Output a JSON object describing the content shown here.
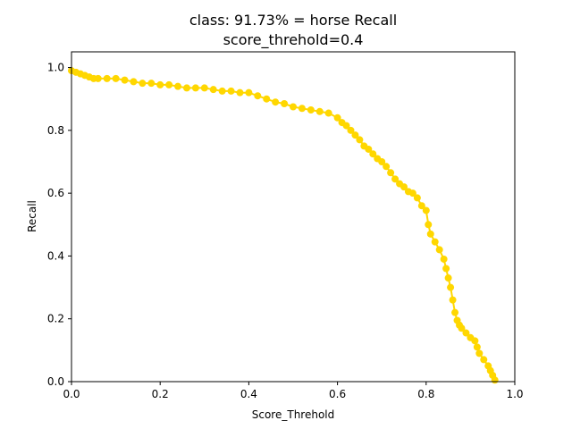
{
  "chart_data": {
    "type": "line",
    "title_line1": "class: 91.73% = horse Recall",
    "title_line2": "score_threhold=0.4",
    "xlabel": "Score_Threhold",
    "ylabel": "Recall",
    "xlim": [
      0.0,
      1.0
    ],
    "ylim": [
      0.0,
      1.05
    ],
    "x_ticks": [
      "0.0",
      "0.2",
      "0.4",
      "0.6",
      "0.8",
      "1.0"
    ],
    "y_ticks": [
      "0.0",
      "0.2",
      "0.4",
      "0.6",
      "0.8",
      "1.0"
    ],
    "grid": false,
    "marker": "circle",
    "series": [
      {
        "color": "#FFD700",
        "x": [
          0.0,
          0.01,
          0.02,
          0.03,
          0.04,
          0.05,
          0.06,
          0.08,
          0.1,
          0.12,
          0.14,
          0.16,
          0.18,
          0.2,
          0.22,
          0.24,
          0.26,
          0.28,
          0.3,
          0.32,
          0.34,
          0.36,
          0.38,
          0.4,
          0.42,
          0.44,
          0.46,
          0.48,
          0.5,
          0.52,
          0.54,
          0.56,
          0.58,
          0.6,
          0.61,
          0.62,
          0.63,
          0.64,
          0.65,
          0.66,
          0.67,
          0.68,
          0.69,
          0.7,
          0.71,
          0.72,
          0.73,
          0.74,
          0.75,
          0.76,
          0.77,
          0.78,
          0.79,
          0.8,
          0.805,
          0.81,
          0.82,
          0.83,
          0.84,
          0.845,
          0.85,
          0.855,
          0.86,
          0.865,
          0.87,
          0.875,
          0.88,
          0.89,
          0.9,
          0.91,
          0.915,
          0.92,
          0.93,
          0.94,
          0.945,
          0.95,
          0.955
        ],
        "y": [
          0.99,
          0.985,
          0.98,
          0.975,
          0.97,
          0.965,
          0.965,
          0.965,
          0.965,
          0.96,
          0.955,
          0.95,
          0.95,
          0.945,
          0.945,
          0.94,
          0.935,
          0.935,
          0.935,
          0.93,
          0.925,
          0.925,
          0.92,
          0.92,
          0.91,
          0.9,
          0.89,
          0.885,
          0.875,
          0.87,
          0.865,
          0.86,
          0.855,
          0.84,
          0.825,
          0.815,
          0.8,
          0.785,
          0.77,
          0.75,
          0.74,
          0.725,
          0.71,
          0.7,
          0.685,
          0.665,
          0.645,
          0.63,
          0.62,
          0.605,
          0.6,
          0.585,
          0.56,
          0.545,
          0.5,
          0.47,
          0.445,
          0.42,
          0.39,
          0.36,
          0.33,
          0.3,
          0.26,
          0.22,
          0.195,
          0.18,
          0.17,
          0.155,
          0.14,
          0.13,
          0.11,
          0.09,
          0.07,
          0.05,
          0.035,
          0.02,
          0.005
        ]
      }
    ]
  }
}
